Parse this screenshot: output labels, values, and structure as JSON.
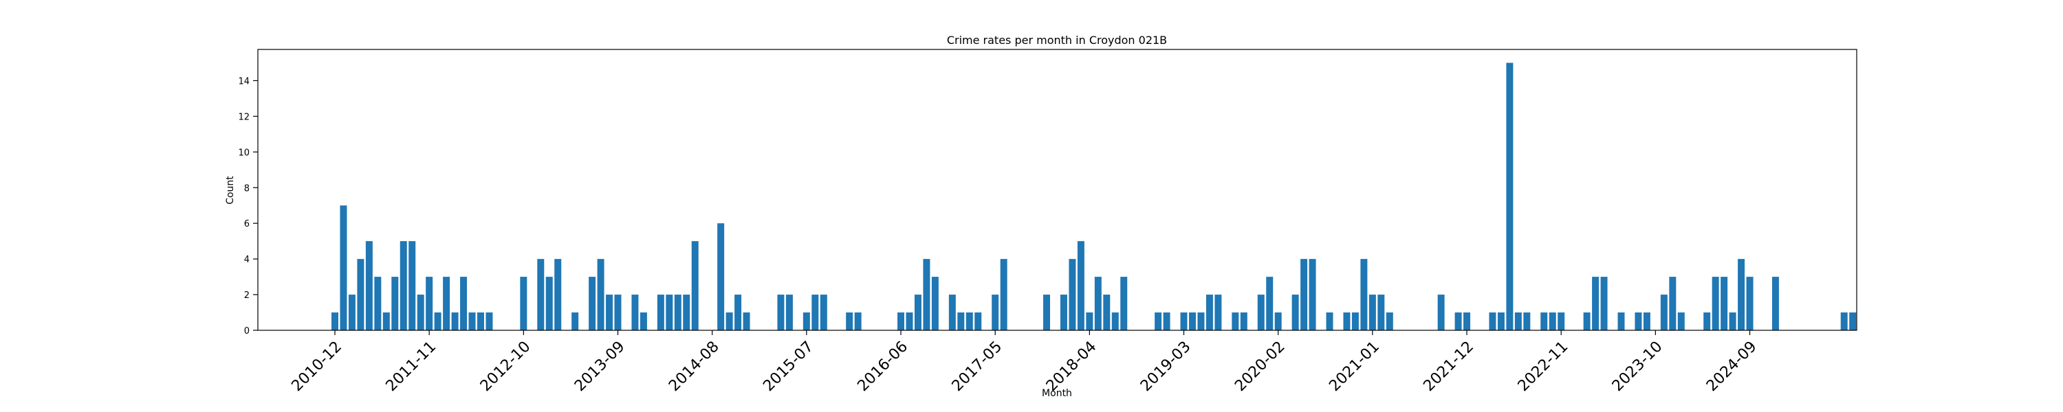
{
  "chart_data": {
    "type": "bar",
    "title": "Crime rates per month in Croydon 021B",
    "xlabel": "Month",
    "ylabel": "Count",
    "ylim": [
      0,
      15.75
    ],
    "yticks": [
      0,
      2,
      4,
      6,
      8,
      10,
      12,
      14
    ],
    "grid": false,
    "color": "#1f77b4",
    "tick_labels": [
      "2010-12",
      "2011-11",
      "2012-10",
      "2013-09",
      "2014-08",
      "2015-07",
      "2016-06",
      "2017-05",
      "2018-04",
      "2019-03",
      "2020-02",
      "2021-01",
      "2021-12",
      "2022-11",
      "2023-10",
      "2024-09"
    ],
    "series": [
      {
        "values": [
          1,
          7,
          2,
          4,
          5,
          3,
          1,
          3,
          5,
          5,
          2,
          3,
          1,
          3,
          1,
          3,
          1,
          1,
          1,
          0,
          0,
          0,
          3,
          0,
          4,
          3,
          4,
          0,
          1,
          0,
          3,
          4,
          2,
          2,
          0,
          2,
          1,
          0,
          2,
          2,
          2,
          2,
          5,
          0,
          0,
          6,
          1,
          2,
          1,
          0,
          0,
          0,
          2,
          2,
          0,
          1,
          2,
          2,
          0,
          0,
          1,
          1,
          0,
          0,
          0,
          0,
          1,
          1,
          2,
          4,
          3,
          0,
          2,
          1,
          1,
          1,
          0,
          2,
          4,
          0,
          0,
          0,
          0,
          2,
          0,
          2,
          4,
          5,
          1,
          3,
          2,
          1,
          3,
          0,
          0,
          0,
          1,
          1,
          0,
          1,
          1,
          1,
          2,
          2,
          0,
          1,
          1,
          0,
          2,
          3,
          1,
          0,
          2,
          4,
          4,
          0,
          1,
          0,
          1,
          1,
          4,
          2,
          2,
          1,
          0,
          0,
          0,
          0,
          0,
          2,
          0,
          1,
          1,
          0,
          0,
          1,
          1,
          15,
          1,
          1,
          0,
          1,
          1,
          1,
          0,
          0,
          1,
          3,
          3,
          0,
          1,
          0,
          1,
          1,
          0,
          2,
          3,
          1,
          0,
          0,
          1,
          3,
          3,
          1,
          4,
          3,
          0,
          0,
          3,
          0,
          0,
          0,
          0,
          0,
          0,
          0,
          1,
          1
        ]
      }
    ]
  }
}
